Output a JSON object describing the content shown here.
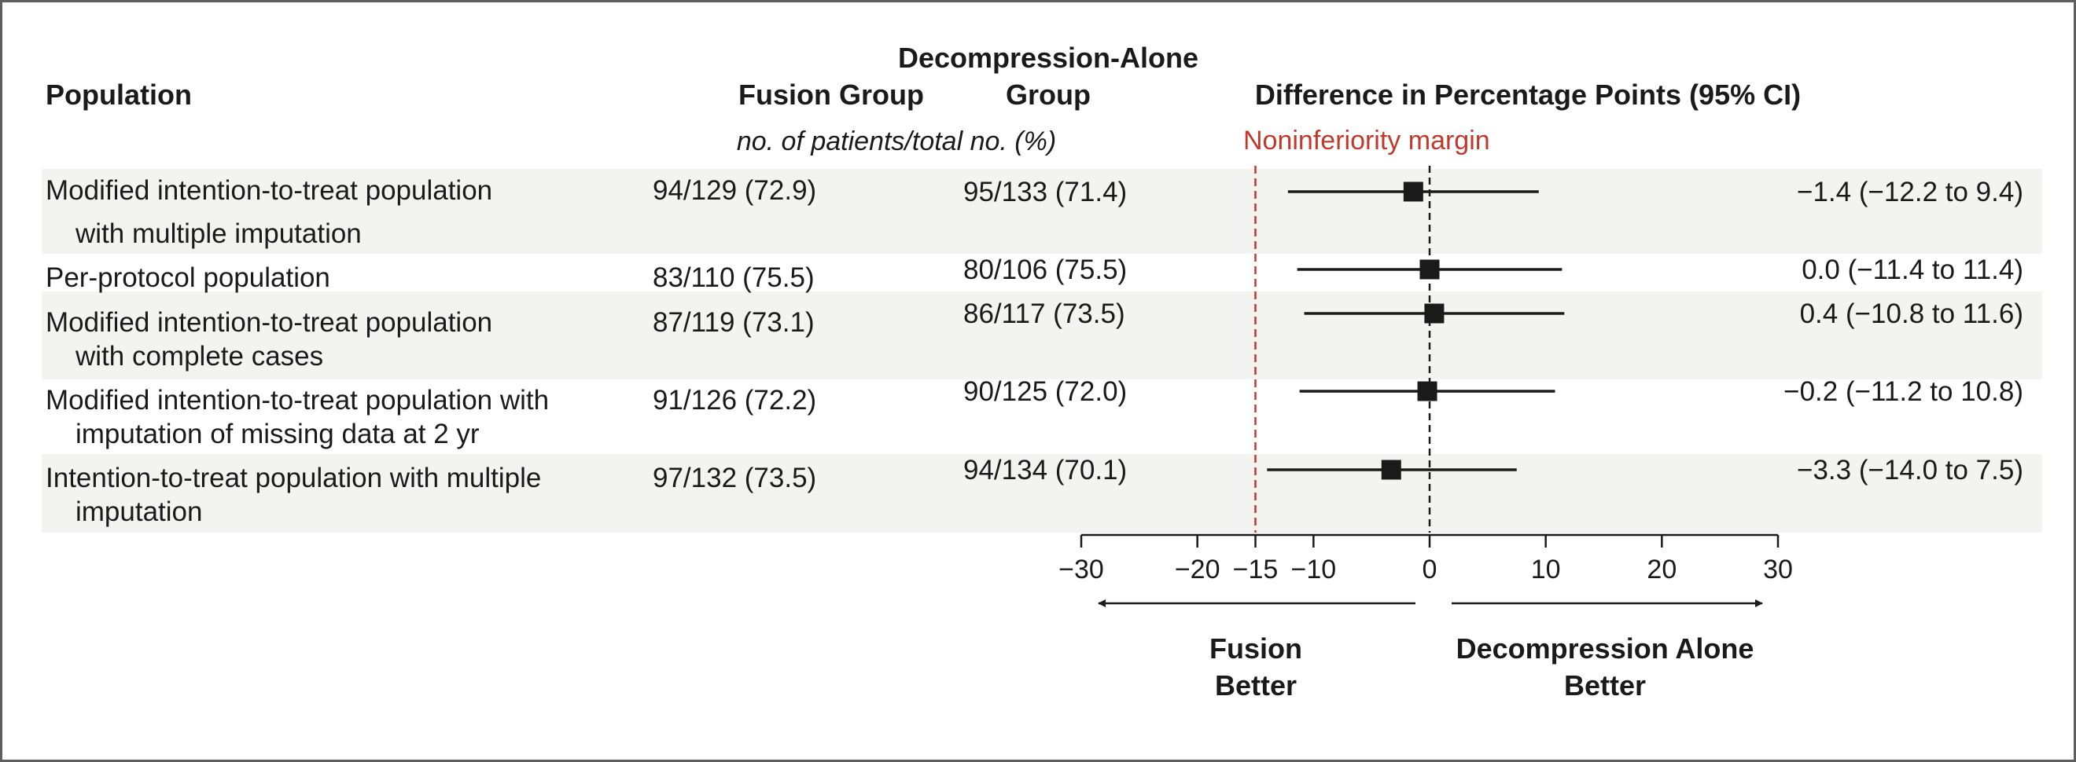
{
  "headers": {
    "population": "Population",
    "fusion": "Fusion Group",
    "decompression_line1": "Decompression-Alone",
    "decompression_line2": "Group",
    "difference": "Difference in Percentage Points (95% CI)",
    "subheader": "no. of patients/total no. (%)"
  },
  "noninferiority_label": "Noninferiority margin",
  "direction_labels": {
    "left_line1": "Fusion",
    "left_line2": "Better",
    "right_line1": "Decompression Alone",
    "right_line2": "Better"
  },
  "colors": {
    "margin_line": "#c0392b",
    "row_band": "#f3f4f2",
    "marker": "#1a1a1a",
    "text": "#1a1a1a"
  },
  "chart_data": {
    "type": "forest",
    "xlabel": "",
    "xlim": [
      -30,
      30
    ],
    "xticks": [
      -30,
      -20,
      -15,
      -10,
      0,
      10,
      20,
      30
    ],
    "xtick_labels": [
      "−30",
      "−20",
      "−15",
      "−10",
      "0",
      "10",
      "20",
      "30"
    ],
    "reference_line": 0,
    "noninferiority_margin": -15,
    "rows": [
      {
        "population_line1": "Modified intention-to-treat population",
        "population_line2": "with multiple imputation",
        "fusion": "94/129 (72.9)",
        "decompression": "95/133 (71.4)",
        "estimate": -1.4,
        "ci_low": -12.2,
        "ci_high": 9.4,
        "ci_text": "−1.4 (−12.2 to 9.4)"
      },
      {
        "population_line1": "Per-protocol population",
        "population_line2": "",
        "fusion": "83/110 (75.5)",
        "decompression": "80/106 (75.5)",
        "estimate": 0.0,
        "ci_low": -11.4,
        "ci_high": 11.4,
        "ci_text": "0.0 (−11.4 to 11.4)"
      },
      {
        "population_line1": "Modified intention-to-treat population",
        "population_line2": "with complete cases",
        "fusion": "87/119 (73.1)",
        "decompression": "86/117 (73.5)",
        "estimate": 0.4,
        "ci_low": -10.8,
        "ci_high": 11.6,
        "ci_text": "0.4 (−10.8 to 11.6)"
      },
      {
        "population_line1": "Modified intention-to-treat population with",
        "population_line2": "imputation of missing data at 2 yr",
        "fusion": "91/126 (72.2)",
        "decompression": "90/125 (72.0)",
        "estimate": -0.2,
        "ci_low": -11.2,
        "ci_high": 10.8,
        "ci_text": "−0.2 (−11.2 to 10.8)"
      },
      {
        "population_line1": "Intention-to-treat population with multiple",
        "population_line2": "imputation",
        "fusion": "97/132 (73.5)",
        "decompression": "94/134 (70.1)",
        "estimate": -3.3,
        "ci_low": -14.0,
        "ci_high": 7.5,
        "ci_text": "−3.3 (−14.0 to 7.5)"
      }
    ]
  }
}
